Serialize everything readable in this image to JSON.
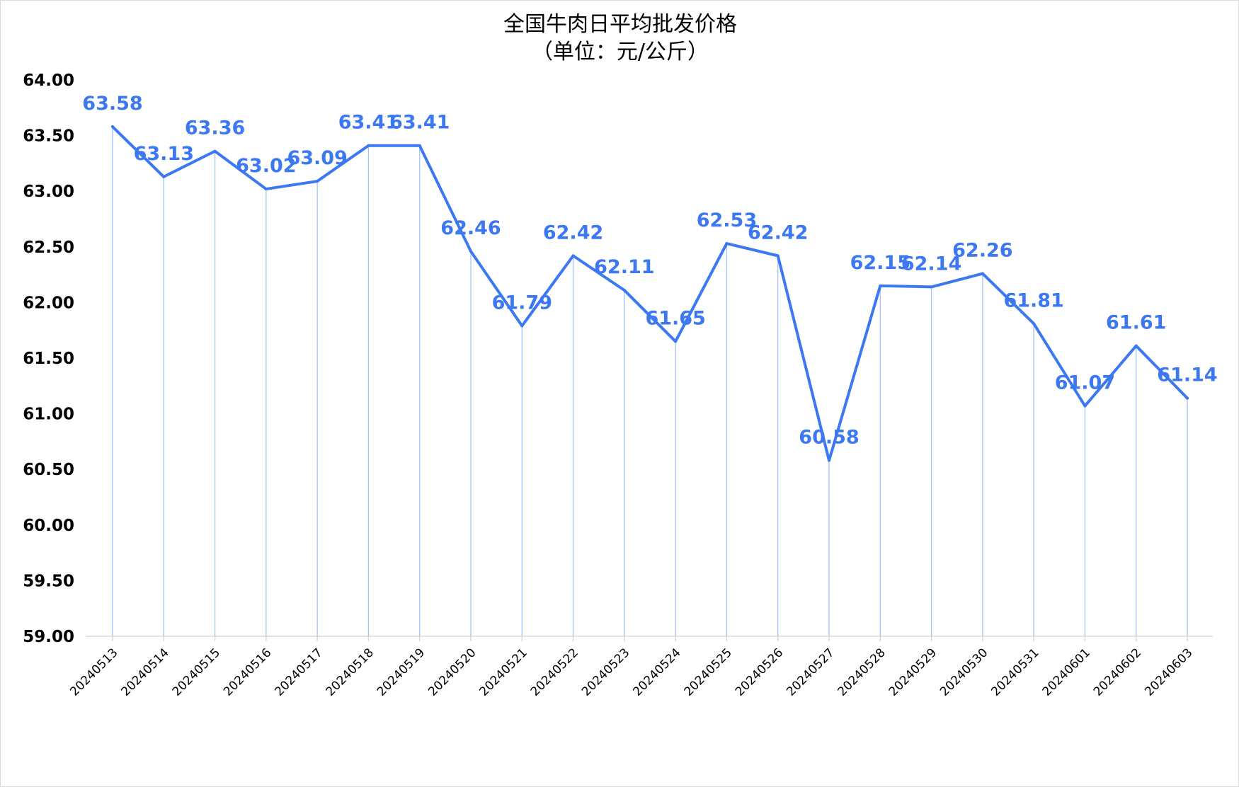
{
  "chart_data": {
    "type": "line",
    "title": "全国牛肉日平均批发价格",
    "subtitle": "（单位：元/公斤）",
    "xlabel": "",
    "ylabel": "",
    "ylim": [
      59.0,
      64.0
    ],
    "yticks": [
      "59.00",
      "59.50",
      "60.00",
      "60.50",
      "61.00",
      "61.50",
      "62.00",
      "62.50",
      "63.00",
      "63.50",
      "64.00"
    ],
    "ytick_values": [
      59.0,
      59.5,
      60.0,
      60.5,
      61.0,
      61.5,
      62.0,
      62.5,
      63.0,
      63.5,
      64.0
    ],
    "grid": false,
    "legend": "none",
    "line_color": "#3B78F2",
    "drop_line_color": "#5B8FF5",
    "axis_color": "#D9D9D9",
    "categories": [
      "20240513",
      "20240514",
      "20240515",
      "20240516",
      "20240517",
      "20240518",
      "20240519",
      "20240520",
      "20240521",
      "20240522",
      "20240523",
      "20240524",
      "20240525",
      "20240526",
      "20240527",
      "20240528",
      "20240529",
      "20240530",
      "20240531",
      "20240601",
      "20240602",
      "20240603"
    ],
    "series": [
      {
        "values": [
          63.58,
          63.13,
          63.36,
          63.02,
          63.09,
          63.41,
          63.41,
          62.46,
          61.79,
          62.42,
          62.11,
          61.65,
          62.53,
          62.42,
          60.58,
          62.15,
          62.14,
          62.26,
          61.81,
          61.07,
          61.61,
          61.14
        ],
        "labels": [
          "63.58",
          "63.13",
          "63.36",
          "63.02",
          "63.09",
          "63.41",
          "63.41",
          "62.46",
          "61.79",
          "62.42",
          "62.11",
          "61.65",
          "62.53",
          "62.42",
          "60.58",
          "62.15",
          "62.14",
          "62.26",
          "61.81",
          "61.07",
          "61.61",
          "61.14"
        ]
      }
    ]
  }
}
